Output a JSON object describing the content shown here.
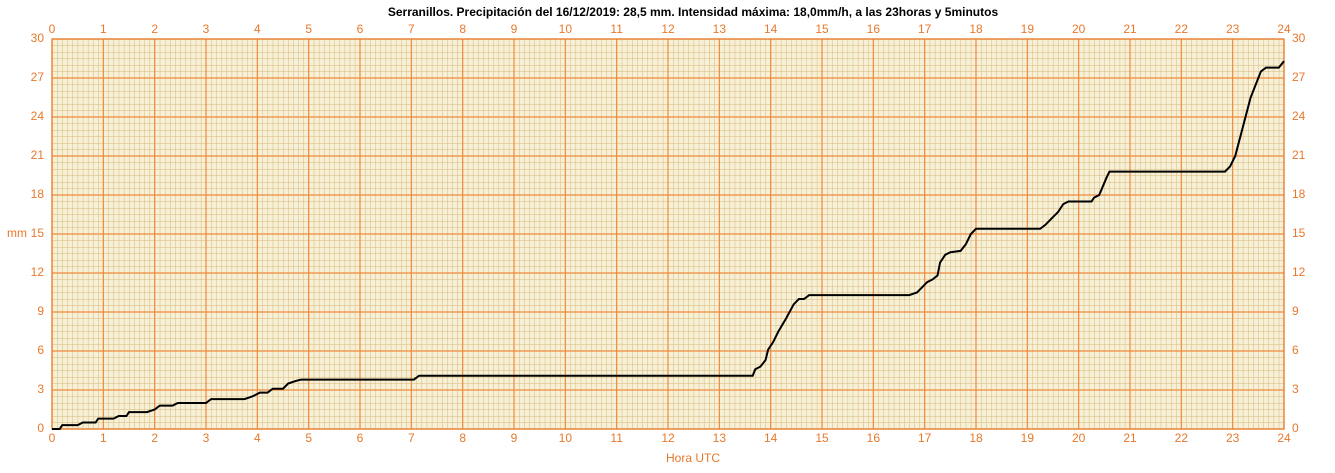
{
  "chart_data": {
    "type": "line",
    "title": "Serranillos. Precipitación del 16/12/2019: 28,5 mm. Intensidad máxima: 18,0mm/h, a las 23horas y 5minutos",
    "x_label": "Hora UTC",
    "y_label": "mm",
    "xlim": [
      0,
      24
    ],
    "ylim": [
      0,
      30
    ],
    "xticks": [
      0,
      1,
      2,
      3,
      4,
      5,
      6,
      7,
      8,
      9,
      10,
      11,
      12,
      13,
      14,
      15,
      16,
      17,
      18,
      19,
      20,
      21,
      22,
      23,
      24
    ],
    "yticks": [
      0,
      3,
      6,
      9,
      12,
      15,
      18,
      21,
      24,
      27,
      30
    ],
    "grid": true,
    "series": [
      {
        "color": "#000000",
        "x": [
          0,
          0.15,
          0.2,
          0.5,
          0.6,
          0.85,
          0.9,
          1.2,
          1.3,
          1.45,
          1.5,
          1.85,
          2.0,
          2.1,
          2.35,
          2.45,
          3.0,
          3.1,
          3.75,
          3.9,
          4.05,
          4.2,
          4.3,
          4.5,
          4.6,
          4.75,
          4.85,
          7.05,
          7.15,
          13.65,
          13.7,
          13.8,
          13.9,
          13.95,
          14.05,
          14.15,
          14.3,
          14.45,
          14.55,
          14.65,
          14.75,
          16.7,
          16.85,
          16.95,
          17.05,
          17.15,
          17.25,
          17.3,
          17.4,
          17.5,
          17.7,
          17.8,
          17.9,
          18.0,
          19.25,
          19.35,
          19.5,
          19.6,
          19.7,
          19.8,
          20.25,
          20.3,
          20.4,
          20.55,
          20.6,
          22.85,
          22.95,
          23.05,
          23.15,
          23.25,
          23.35,
          23.45,
          23.55,
          23.65,
          23.9,
          24.0
        ],
        "values": [
          0,
          0,
          0.3,
          0.3,
          0.5,
          0.5,
          0.8,
          0.8,
          1.0,
          1.0,
          1.3,
          1.3,
          1.5,
          1.8,
          1.8,
          2.0,
          2.0,
          2.3,
          2.3,
          2.5,
          2.8,
          2.8,
          3.1,
          3.1,
          3.5,
          3.7,
          3.8,
          3.8,
          4.1,
          4.1,
          4.6,
          4.8,
          5.3,
          6.1,
          6.7,
          7.5,
          8.5,
          9.6,
          10.0,
          10.0,
          10.3,
          10.3,
          10.5,
          10.9,
          11.3,
          11.5,
          11.8,
          12.8,
          13.4,
          13.6,
          13.7,
          14.2,
          15.0,
          15.4,
          15.4,
          15.7,
          16.3,
          16.7,
          17.3,
          17.5,
          17.5,
          17.8,
          18.0,
          19.4,
          19.8,
          19.8,
          20.2,
          21.0,
          22.5,
          24.0,
          25.5,
          26.5,
          27.5,
          27.8,
          27.8,
          28.3
        ]
      }
    ]
  }
}
